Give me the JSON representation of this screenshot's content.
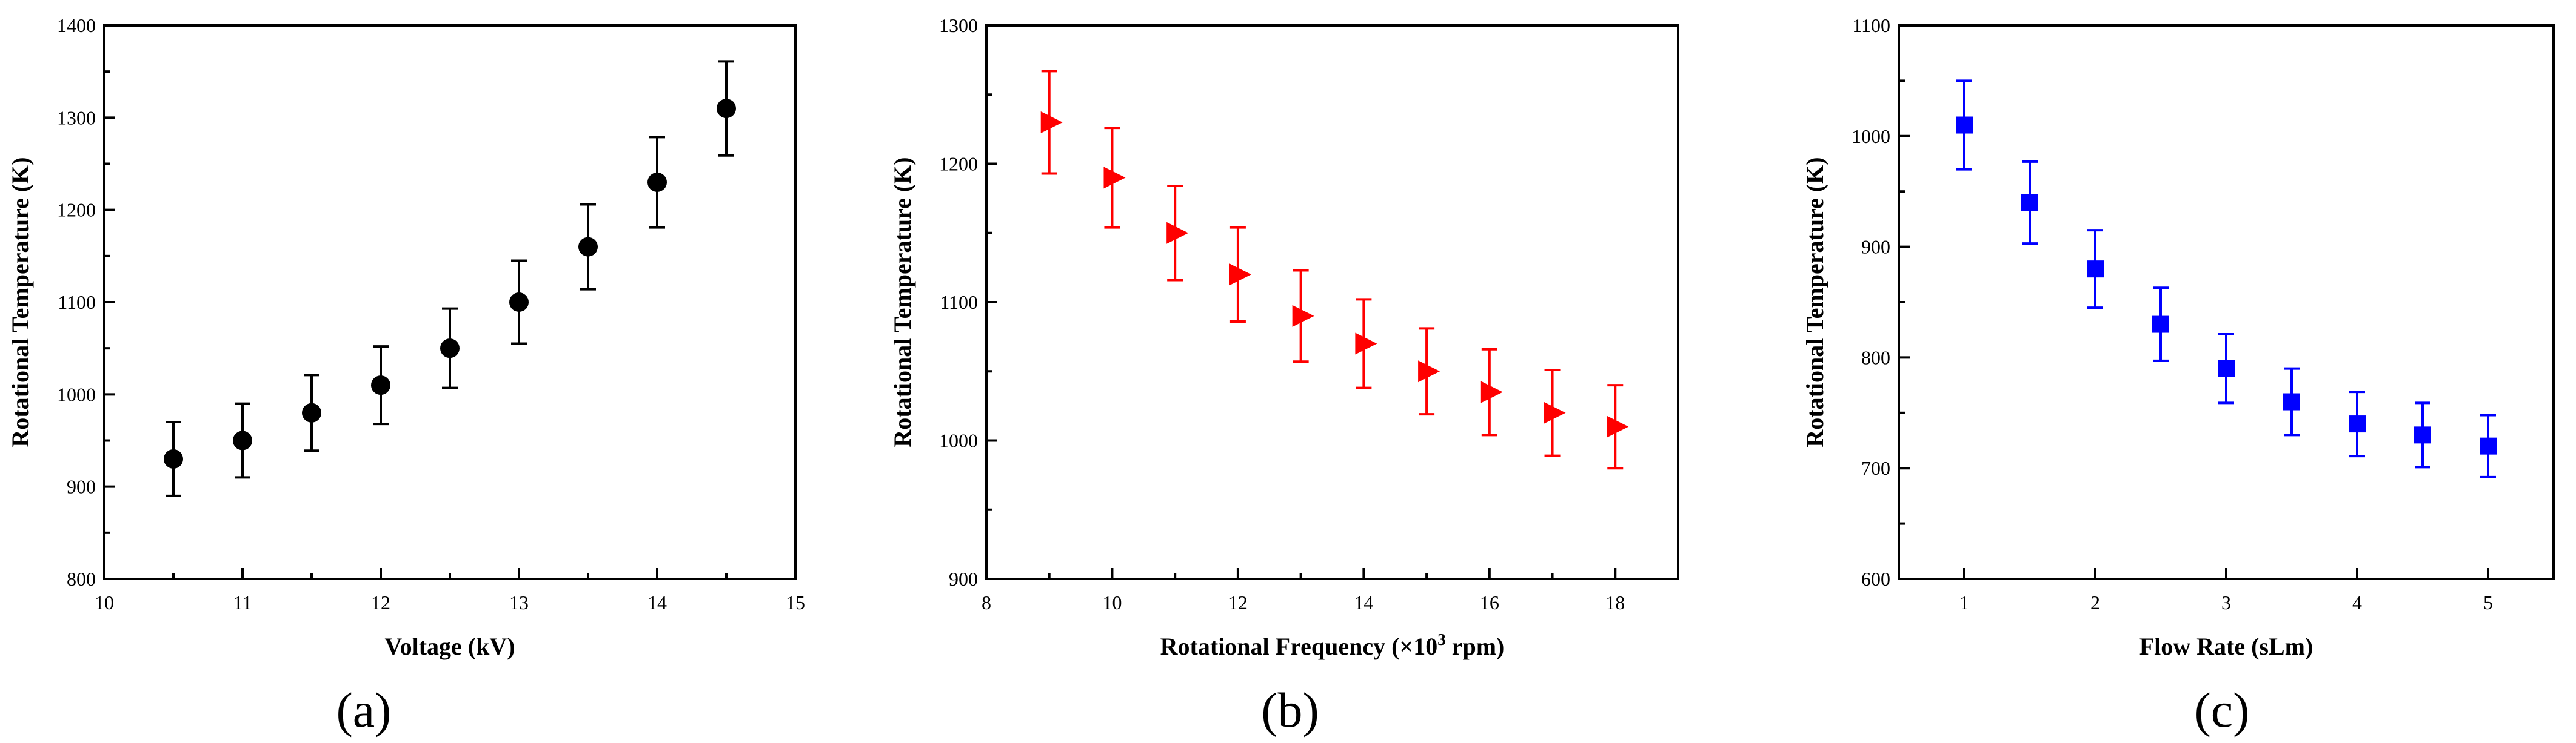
{
  "figure": {
    "panels": [
      {
        "label": "(a)"
      },
      {
        "label": "(b)"
      },
      {
        "label": "(c)"
      }
    ]
  },
  "chart_data": [
    {
      "type": "scatter",
      "panel": "(a)",
      "title": "",
      "xlabel": "Voltage (kV)",
      "ylabel": "Rotational Temperature (K)",
      "xlim": [
        10,
        15
      ],
      "ylim": [
        800,
        1400
      ],
      "xticks": [
        10,
        11,
        12,
        13,
        14,
        15
      ],
      "yticks": [
        800,
        900,
        1000,
        1100,
        1200,
        1300,
        1400
      ],
      "marker": "circle",
      "color": "#000000",
      "x": [
        10.5,
        11,
        11.5,
        12,
        12.5,
        13,
        13.5,
        14,
        14.5
      ],
      "y": [
        930,
        950,
        980,
        1010,
        1050,
        1100,
        1160,
        1230,
        1310
      ],
      "err": [
        40,
        40,
        41,
        42,
        43,
        45,
        46,
        49,
        51
      ]
    },
    {
      "type": "scatter",
      "panel": "(b)",
      "title": "",
      "xlabel": "Rotational Frequency (×10³ rpm)",
      "xlabel_parts": {
        "pre": "Rotational Frequency (×10",
        "sup": "3",
        "post": " rpm)"
      },
      "ylabel": "Rotational Temperature (K)",
      "xlim": [
        8,
        19
      ],
      "ylim": [
        900,
        1300
      ],
      "xticks": [
        8,
        10,
        12,
        14,
        16,
        18
      ],
      "yticks": [
        900,
        1000,
        1100,
        1200,
        1300
      ],
      "marker": "triangle-right",
      "color": "#ff0000",
      "x": [
        9,
        10,
        11,
        12,
        13,
        14,
        15,
        16,
        17,
        18
      ],
      "y": [
        1230,
        1190,
        1150,
        1120,
        1090,
        1070,
        1050,
        1035,
        1020,
        1010
      ],
      "err": [
        37,
        36,
        34,
        34,
        33,
        32,
        31,
        31,
        31,
        30
      ]
    },
    {
      "type": "scatter",
      "panel": "(c)",
      "title": "",
      "xlabel": "Flow Rate (sLm)",
      "ylabel": "Rotational Temperature (K)",
      "xlim": [
        0.5,
        5.5
      ],
      "ylim": [
        600,
        1100
      ],
      "xticks": [
        1,
        2,
        3,
        4,
        5
      ],
      "yticks": [
        600,
        700,
        800,
        900,
        1000,
        1100
      ],
      "marker": "square",
      "color": "#0000ff",
      "x": [
        1,
        1.5,
        2,
        2.5,
        3,
        3.5,
        4,
        4.5,
        5
      ],
      "y": [
        1010,
        940,
        880,
        830,
        790,
        760,
        740,
        730,
        720
      ],
      "err": [
        40,
        37,
        35,
        33,
        31,
        30,
        29,
        29,
        28
      ]
    }
  ]
}
